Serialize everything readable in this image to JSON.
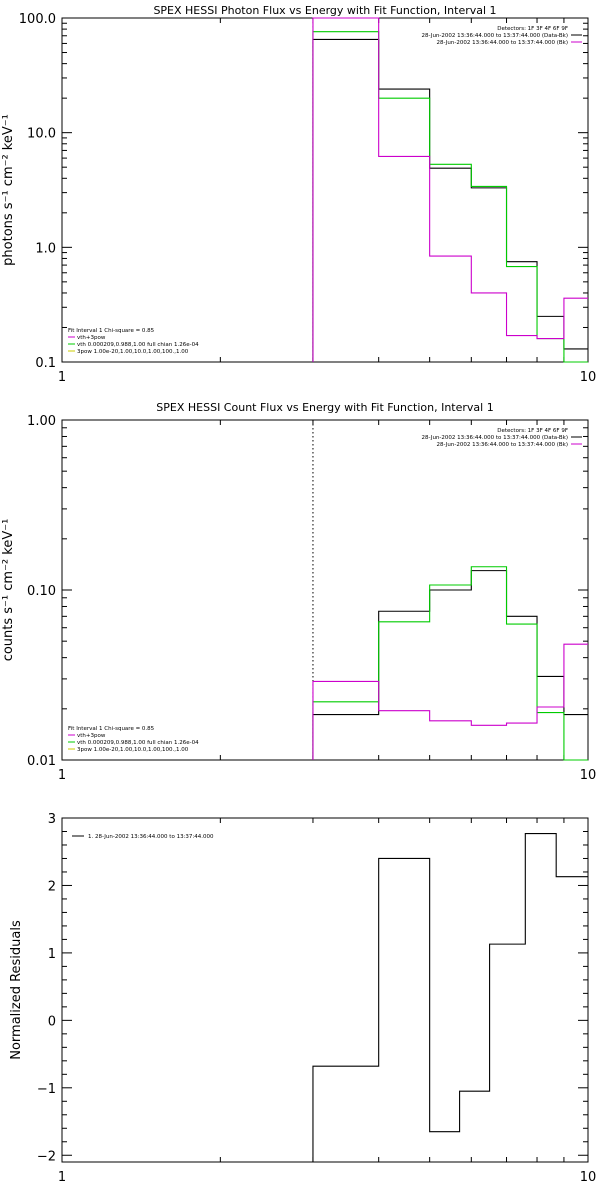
{
  "chart_data": [
    {
      "type": "step",
      "title": "SPEX HESSI Photon Flux vs Energy with Fit Function, Interval 1",
      "ylabel": "photons s⁻¹ cm⁻² keV⁻¹",
      "xlabel": "",
      "xscale": "log",
      "yscale": "log",
      "xlim": [
        1,
        10
      ],
      "ylim": [
        0.1,
        100
      ],
      "x_ticks": [
        "1",
        "10"
      ],
      "y_ticks": [
        {
          "v": 0.1,
          "label": "0.1"
        },
        {
          "v": 1,
          "label": "1.0"
        },
        {
          "v": 10,
          "label": "10.0"
        },
        {
          "v": 100,
          "label": "100.0"
        }
      ],
      "vline": 3,
      "legend_right": [
        {
          "text": "Detectors: 1F 3F 4F 6F 9F",
          "color": "#000000"
        },
        {
          "text": "28-Jun-2002 13:36:44.000 to 13:37:44.000 (Data-Bk)",
          "color": "#000000"
        },
        {
          "text": "28-Jun-2002 13:36:44.000 to 13:37:44.000 (Bk)",
          "color": "#cc00cc"
        }
      ],
      "legend_left": [
        {
          "text": "Fit Interval 1   Chi-square = 0.85",
          "color": "#000000"
        },
        {
          "text": "vth+3pow",
          "color": "#cc00cc"
        },
        {
          "text": "vth 0.000209,0.988,1.00  full chian 1.26e-04",
          "color": "#00cc00"
        },
        {
          "text": "3pow 1.00e-20,1.00,10.0,1.00,100.,1.00",
          "color": "#cccc00"
        }
      ],
      "edges": [
        3,
        4,
        5,
        6,
        7,
        8,
        9,
        10
      ],
      "series": [
        {
          "color": "#000000",
          "values": [
            65,
            24,
            4.9,
            3.3,
            0.75,
            0.25,
            0.13
          ]
        },
        {
          "color": "#00cc00",
          "values": [
            76,
            20,
            5.3,
            3.4,
            0.68,
            0.16,
            0.09
          ]
        },
        {
          "color": "#cc00cc",
          "values": [
            100,
            6.2,
            0.84,
            0.4,
            0.17,
            0.16,
            0.36
          ]
        }
      ]
    },
    {
      "type": "step",
      "title": "SPEX HESSI Count Flux vs Energy with Fit Function, Interval 1",
      "ylabel": "counts s⁻¹ cm⁻² keV⁻¹",
      "xlabel": "",
      "xscale": "log",
      "yscale": "log",
      "xlim": [
        1,
        10
      ],
      "ylim": [
        0.01,
        1
      ],
      "x_ticks": [
        "1",
        "10"
      ],
      "y_ticks": [
        {
          "v": 0.01,
          "label": "0.01"
        },
        {
          "v": 0.1,
          "label": "0.10"
        },
        {
          "v": 1,
          "label": "1.00"
        }
      ],
      "vline": 3,
      "legend_right": [
        {
          "text": "Detectors: 1F 3F 4F 6F 9F",
          "color": "#000000"
        },
        {
          "text": "28-Jun-2002 13:36:44.000 to 13:37:44.000 (Data-Bk)",
          "color": "#000000"
        },
        {
          "text": "28-Jun-2002 13:36:44.000 to 13:37:44.000 (Bk)",
          "color": "#cc00cc"
        }
      ],
      "legend_left": [
        {
          "text": "Fit Interval 1   Chi-square = 0.85",
          "color": "#000000"
        },
        {
          "text": "vth+3pow",
          "color": "#cc00cc"
        },
        {
          "text": "vth 0.000209,0.988,1.00  full chian 1.26e-04",
          "color": "#00cc00"
        },
        {
          "text": "3pow 1.00e-20,1.00,10.0,1.00,100.,1.00",
          "color": "#cccc00"
        }
      ],
      "edges": [
        3,
        4,
        5,
        6,
        7,
        8,
        9,
        10
      ],
      "series": [
        {
          "color": "#000000",
          "values": [
            0.0185,
            0.075,
            0.1,
            0.13,
            0.07,
            0.031,
            0.0185
          ]
        },
        {
          "color": "#00cc00",
          "values": [
            0.022,
            0.065,
            0.107,
            0.137,
            0.063,
            0.019,
            0.01
          ]
        },
        {
          "color": "#cc00cc",
          "values": [
            0.029,
            0.0195,
            0.017,
            0.016,
            0.0165,
            0.0205,
            0.048
          ]
        }
      ]
    },
    {
      "type": "step",
      "title": "",
      "ylabel": "Normalized Residuals",
      "xlabel": "",
      "xscale": "log",
      "yscale": "linear",
      "xlim": [
        1,
        10
      ],
      "ylim": [
        -2.1,
        3
      ],
      "x_ticks": [
        "1",
        "10"
      ],
      "y_ticks": [
        {
          "v": -2,
          "label": "−2"
        },
        {
          "v": -1,
          "label": "−1"
        },
        {
          "v": 0,
          "label": "0"
        },
        {
          "v": 1,
          "label": "1"
        },
        {
          "v": 2,
          "label": "2"
        },
        {
          "v": 3,
          "label": "3"
        }
      ],
      "legend_left": [
        {
          "text": "1. 28-Jun-2002 13:36:44.000 to 13:37:44.000",
          "color": "#000000"
        }
      ],
      "edges": [
        3,
        4,
        5,
        5.7,
        6.5,
        7.6,
        8.7,
        10
      ],
      "series": [
        {
          "color": "#000000",
          "values": [
            -0.68,
            2.4,
            -1.65,
            -1.05,
            1.13,
            2.77,
            2.13
          ]
        }
      ]
    }
  ]
}
